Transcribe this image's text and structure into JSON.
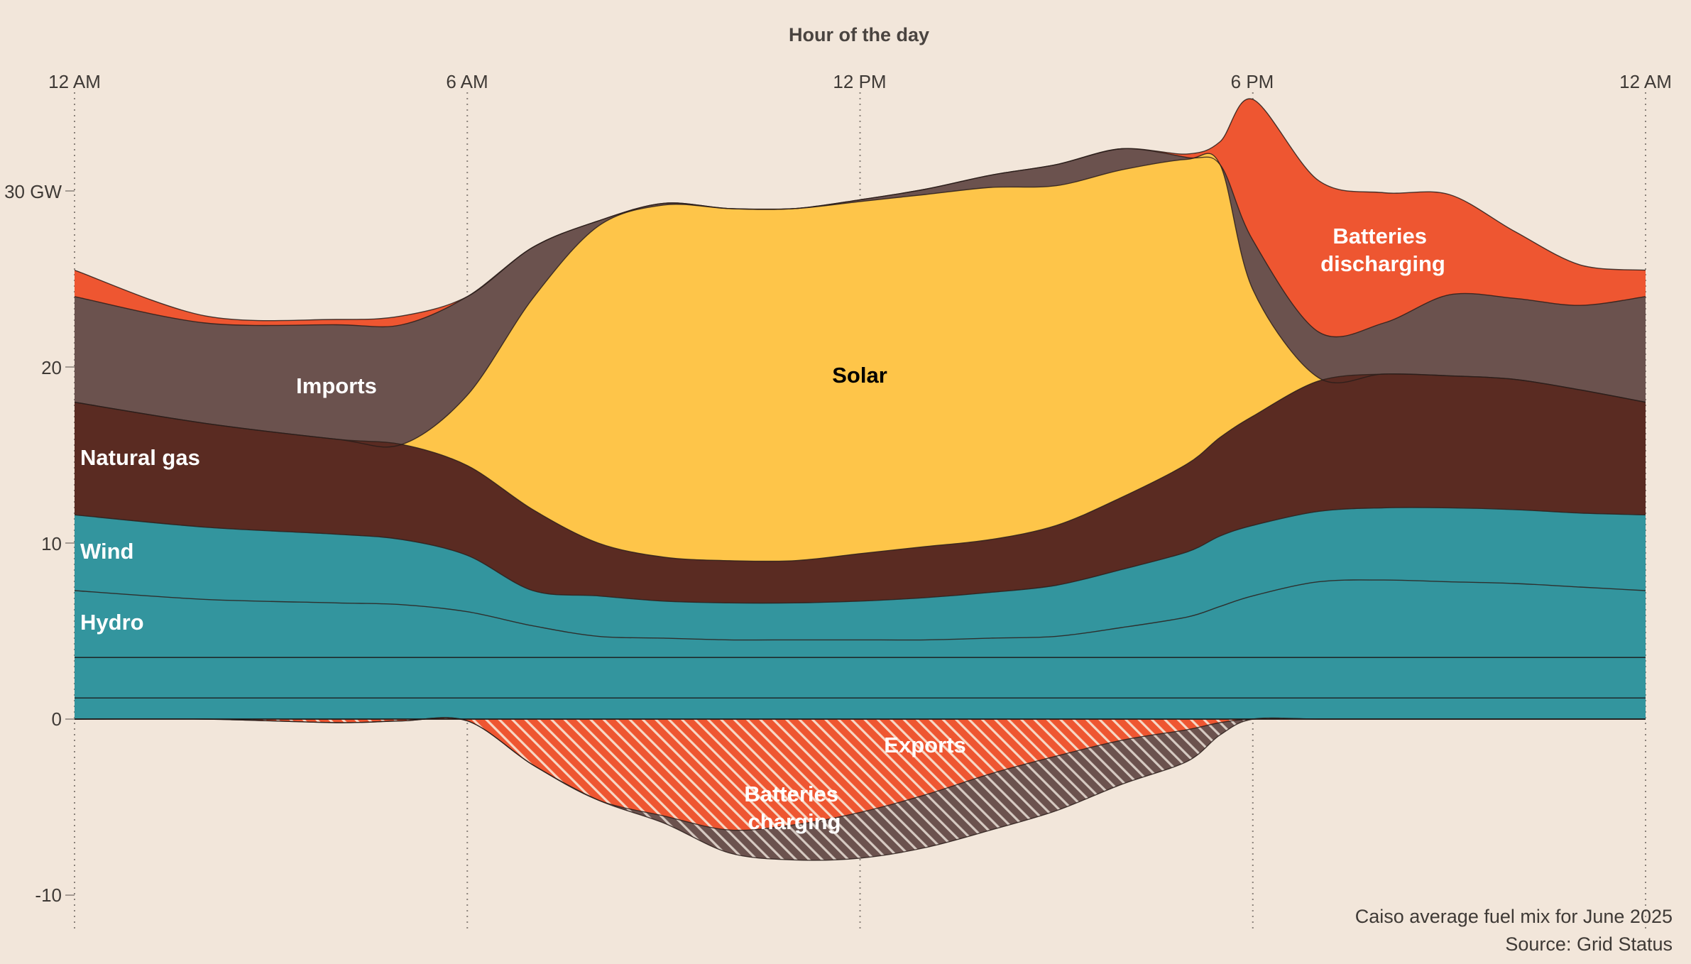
{
  "chart_data": {
    "type": "area",
    "xlabel": "Hour of the day",
    "x_ticks": [
      "12 AM",
      "6 AM",
      "12 PM",
      "6 PM",
      "12 AM"
    ],
    "y_ticks": [
      "30 GW",
      "20",
      "10",
      "0",
      "-10"
    ],
    "ylim": [
      -11,
      34
    ],
    "xlim": [
      0,
      24
    ],
    "x_hours": [
      0,
      2,
      4,
      5,
      6,
      7,
      8,
      9,
      10,
      11,
      12,
      13,
      14,
      15,
      16,
      17,
      17.5,
      18,
      19,
      20,
      21,
      22,
      23,
      24
    ],
    "series": [
      {
        "name": "Hydro",
        "label": "Hydro",
        "color": "#33959e",
        "values": [
          7.3,
          6.8,
          6.6,
          6.5,
          6.1,
          5.3,
          4.7,
          4.6,
          4.5,
          4.5,
          4.5,
          4.5,
          4.6,
          4.7,
          5.2,
          5.8,
          6.4,
          7.0,
          7.8,
          7.9,
          7.8,
          7.7,
          7.5,
          7.3
        ]
      },
      {
        "name": "Wind",
        "label": "Wind",
        "color": "#33959e",
        "values": [
          4.3,
          4.1,
          3.9,
          3.7,
          3.2,
          2.0,
          2.3,
          2.1,
          2.1,
          2.1,
          2.2,
          2.4,
          2.6,
          2.9,
          3.3,
          3.7,
          4.0,
          4.0,
          4.0,
          4.1,
          4.2,
          4.2,
          4.2,
          4.3
        ]
      },
      {
        "name": "Natural gas",
        "label": "Natural gas",
        "color": "#5a2b22",
        "values": [
          6.4,
          5.9,
          5.4,
          5.4,
          5.1,
          4.6,
          3.0,
          2.5,
          2.4,
          2.4,
          2.7,
          2.9,
          3.0,
          3.4,
          4.1,
          5.0,
          5.6,
          6.2,
          7.4,
          7.6,
          7.5,
          7.4,
          7.0,
          6.4
        ]
      },
      {
        "name": "Solar",
        "label": "Solar",
        "color": "#fec549",
        "values": [
          0.0,
          0.0,
          0.0,
          0.0,
          4.0,
          12.0,
          18.0,
          20.0,
          20.0,
          20.0,
          20.0,
          20.0,
          20.0,
          19.3,
          18.6,
          17.3,
          15.5,
          7.2,
          0.2,
          0.0,
          0.0,
          0.0,
          0.0,
          0.0
        ]
      },
      {
        "name": "Imports",
        "label": "Imports",
        "color": "#6b524e",
        "values": [
          6.0,
          5.7,
          6.5,
          6.8,
          5.6,
          2.9,
          0.3,
          0.1,
          0.0,
          0.0,
          0.1,
          0.3,
          0.7,
          1.2,
          1.2,
          0.1,
          0.0,
          2.8,
          2.6,
          2.9,
          4.6,
          4.6,
          4.8,
          6.0
        ]
      },
      {
        "name": "Batteries discharging",
        "label": "Batteries discharging",
        "color": "#ee5631",
        "values": [
          1.5,
          0.4,
          0.3,
          0.5,
          0.0,
          0.0,
          0.0,
          0.0,
          0.0,
          0.0,
          0.0,
          0.0,
          0.0,
          0.0,
          0.0,
          0.2,
          1.3,
          8.0,
          8.6,
          7.4,
          5.7,
          3.8,
          2.3,
          1.5
        ]
      },
      {
        "name": "Batteries charging",
        "label": "Batteries charging",
        "color": "#ee5631",
        "hatched": true,
        "values": [
          0.0,
          0.0,
          -0.2,
          -0.1,
          -0.1,
          -2.6,
          -4.6,
          -5.5,
          -6.3,
          -6.0,
          -5.3,
          -4.3,
          -3.1,
          -2.1,
          -1.2,
          -0.6,
          -0.2,
          0.0,
          0.0,
          0.0,
          0.0,
          0.0,
          0.0,
          0.0
        ]
      },
      {
        "name": "Exports",
        "label": "Exports",
        "color": "#6b524e",
        "hatched": true,
        "values": [
          0.0,
          0.0,
          0.0,
          0.0,
          0.0,
          0.0,
          0.0,
          -0.4,
          -1.3,
          -2.0,
          -2.6,
          -3.0,
          -3.2,
          -3.1,
          -2.5,
          -1.8,
          -0.7,
          0.0,
          0.0,
          0.0,
          0.0,
          0.0,
          0.0,
          0.0
        ]
      }
    ],
    "inner_lines": [
      {
        "name": "hydro-inner-line-1",
        "value": 3.5
      },
      {
        "name": "hydro-inner-line-2",
        "value": 1.2
      }
    ],
    "grid": "vertical dotted at x ticks",
    "source_lines": [
      "Caiso average fuel mix for June 2025",
      "Source: Grid Status"
    ]
  }
}
